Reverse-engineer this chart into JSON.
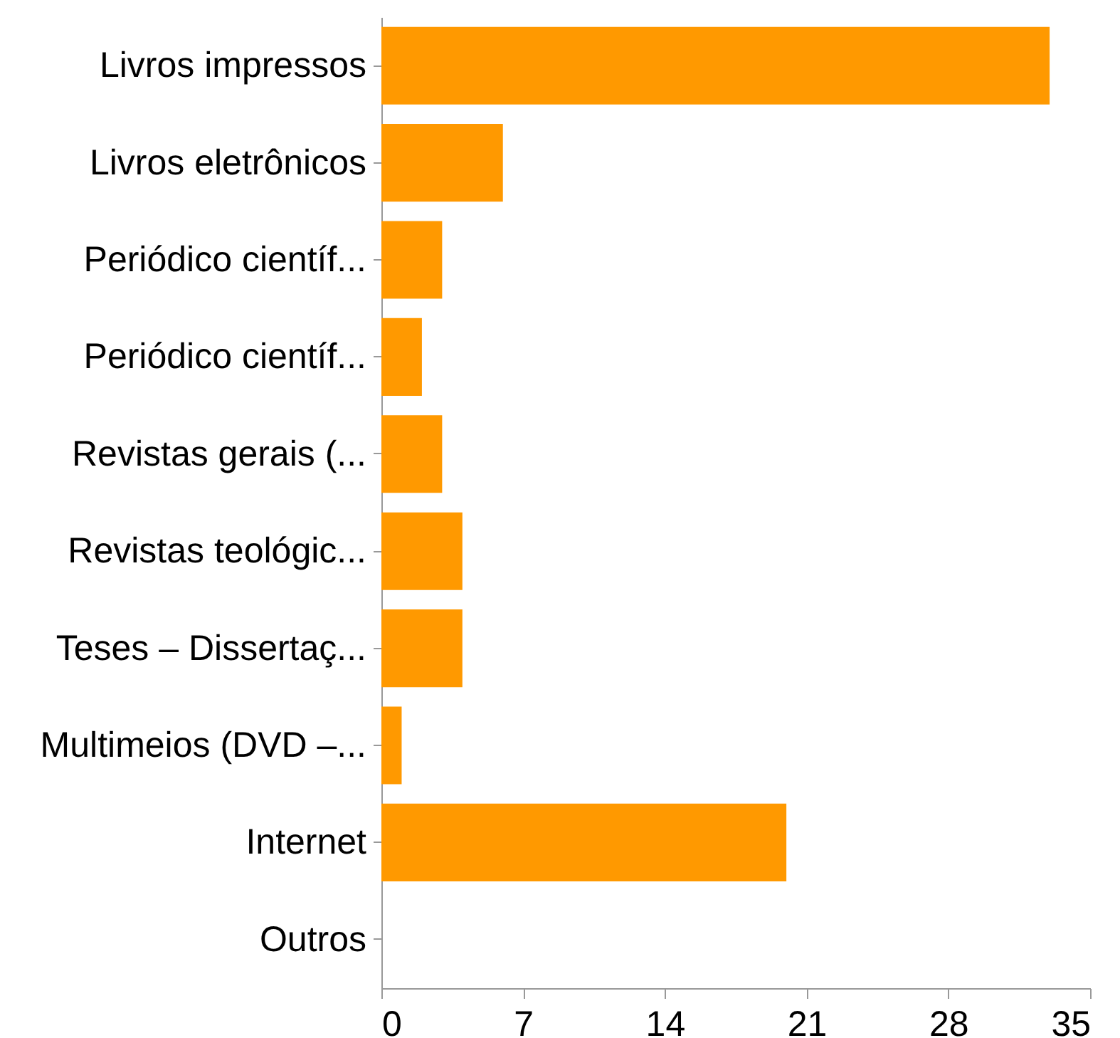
{
  "chart_data": {
    "type": "bar",
    "orientation": "horizontal",
    "categories": [
      "Livros impressos",
      "Livros eletrônicos",
      "Periódico científ...",
      "Periódico científ...",
      "Revistas gerais (...",
      "Revistas teológic...",
      "Teses – Dissertaç...",
      "Multimeios (DVD –...",
      "Internet",
      "Outros"
    ],
    "values": [
      33,
      6,
      3,
      2,
      3,
      4,
      4,
      1,
      20,
      0
    ],
    "color": "#ff9900",
    "xlim": [
      0,
      35
    ],
    "xticks": [
      0,
      7,
      14,
      21,
      28,
      35
    ]
  }
}
